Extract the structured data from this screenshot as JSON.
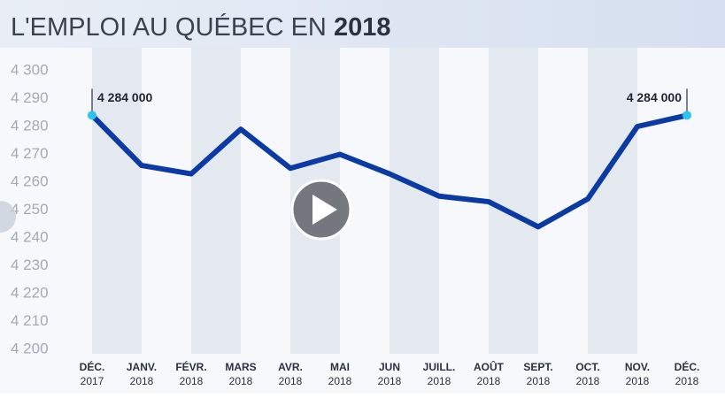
{
  "chart_data": {
    "type": "line",
    "title": "L'EMPLOI AU QUÉBEC EN",
    "title_emphasis": "2018",
    "categories": [
      "DÉC.",
      "JANV.",
      "FÉVR.",
      "MARS",
      "AVR.",
      "MAI",
      "JUN",
      "JUILL.",
      "AOÛT",
      "SEPT.",
      "OCT.",
      "NOV.",
      "DÉC."
    ],
    "category_years": [
      "2017",
      "2018",
      "2018",
      "2018",
      "2018",
      "2018",
      "2018",
      "2018",
      "2018",
      "2018",
      "2018",
      "2018",
      "2018"
    ],
    "values": [
      4284,
      4266,
      4263,
      4279,
      4265,
      4270,
      4263,
      4255,
      4253,
      4244,
      4254,
      4280,
      4284
    ],
    "value_labels": [
      "4 284 000",
      null,
      null,
      null,
      null,
      null,
      null,
      null,
      null,
      null,
      null,
      null,
      "4 284 000"
    ],
    "color": "#0b3aa4",
    "marker_color": "#2cc3f0",
    "ylim": [
      4200,
      4300
    ],
    "yticks": [
      {
        "value": 4200,
        "label": "4 200"
      },
      {
        "value": 4210,
        "label": "4 210"
      },
      {
        "value": 4220,
        "label": "4 220"
      },
      {
        "value": 4230,
        "label": "4 230"
      },
      {
        "value": 4240,
        "label": "4 240"
      },
      {
        "value": 4250,
        "label": "4 250"
      },
      {
        "value": 4260,
        "label": "4 260"
      },
      {
        "value": 4270,
        "label": "4 270"
      },
      {
        "value": 4280,
        "label": "4 280"
      },
      {
        "value": 4290,
        "label": "4 290"
      },
      {
        "value": 4300,
        "label": "4 300"
      }
    ]
  }
}
